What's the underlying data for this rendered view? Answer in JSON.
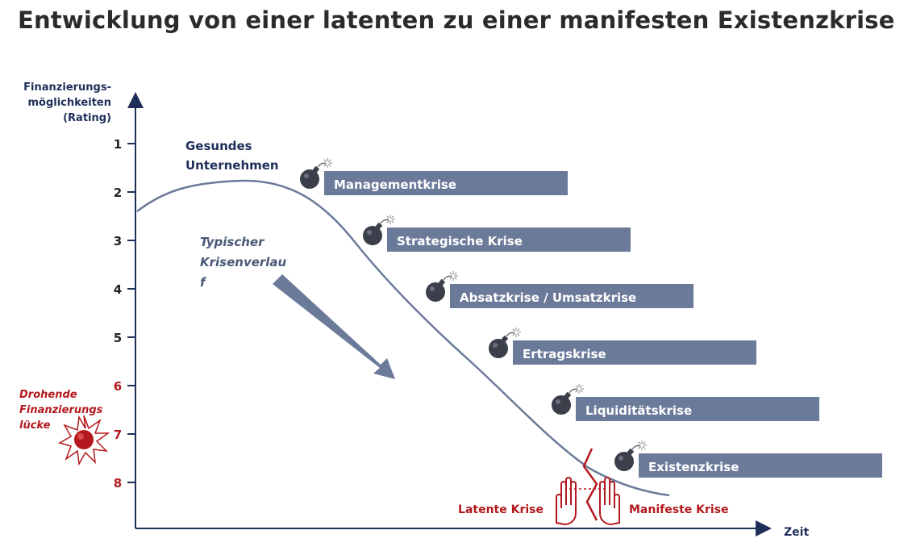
{
  "title": "Entwicklung von einer latenten zu einer manifesten Existenzkrise",
  "y_axis": {
    "label_lines": [
      "Finanzierungs-",
      "möglichkeiten",
      "(Rating)"
    ],
    "ticks": [
      "1",
      "2",
      "3",
      "4",
      "5",
      "6",
      "7",
      "8"
    ]
  },
  "x_axis": {
    "label": "Zeit"
  },
  "healthy_label_lines": [
    "Gesundes",
    "Unternehmen"
  ],
  "typical_label_lines": [
    "Typischer",
    "Krisenverlau",
    "f"
  ],
  "funding_gap_label_lines": [
    "Drohende",
    "Finanzierungs",
    "lücke"
  ],
  "crises": [
    {
      "label": "Managementkrise"
    },
    {
      "label": "Strategische Krise"
    },
    {
      "label": "Absatzkrise / Umsatzkrise"
    },
    {
      "label": "Ertragskrise"
    },
    {
      "label": "Liquiditätskrise"
    },
    {
      "label": "Existenzkrise"
    }
  ],
  "latent_label": "Latente Krise",
  "manifest_label": "Manifeste Krise",
  "colors": {
    "axis": "#1f2f5a",
    "curve": "#6b7a99",
    "box": "#6b7a99",
    "danger": "#b3191e",
    "bomb": "#3a3f4a"
  },
  "icons": [
    "bomb-icon",
    "explosion-icon",
    "hand-icon",
    "crack-icon"
  ]
}
